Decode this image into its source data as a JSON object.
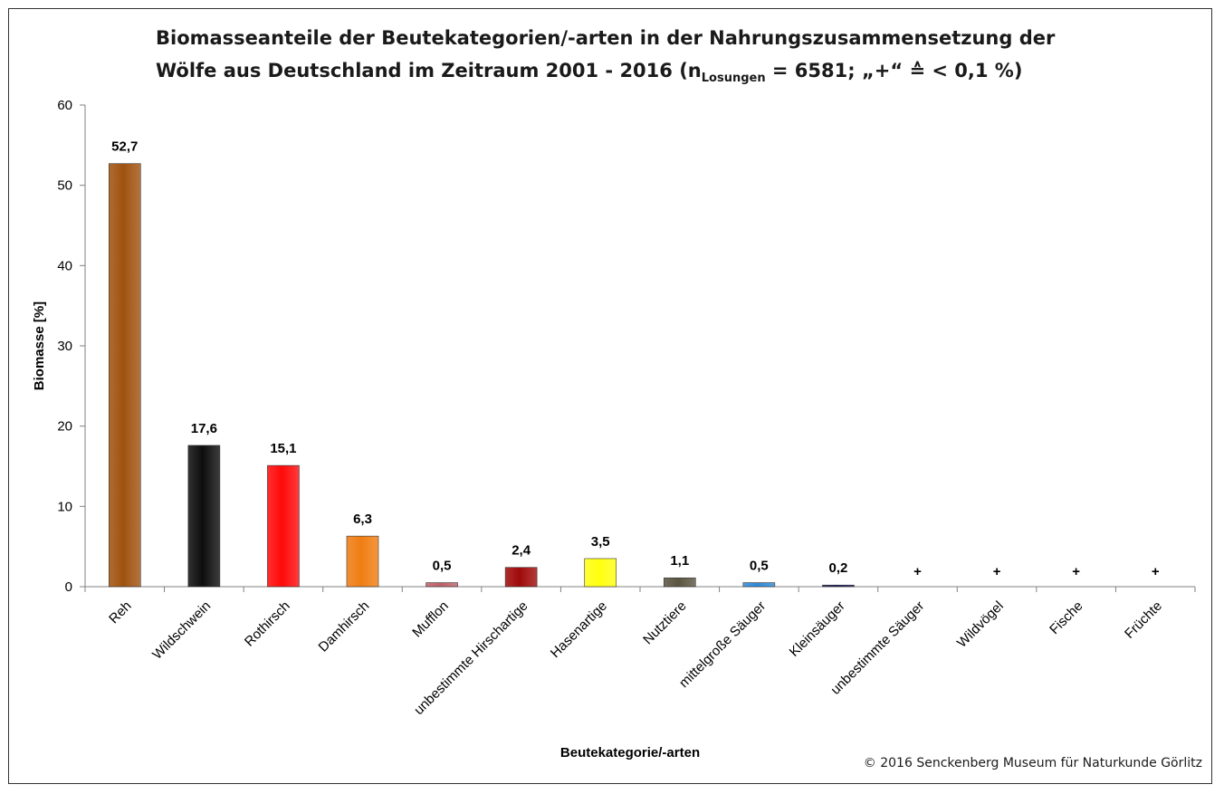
{
  "title": {
    "line1": "Biomasseanteile der Beutekategorien/-arten in der Nahrungszusammensetzung der",
    "line2_pre": "Wölfe aus Deutschland im Zeitraum 2001 - 2016 (n",
    "line2_sub": "Losungen",
    "line2_post": " = 6581; „+“ ≙ < 0,1 %)"
  },
  "copyright": "© 2016 Senckenberg Museum für Naturkunde Görlitz",
  "chart_data": {
    "type": "bar",
    "title": "Biomasseanteile der Beutekategorien/-arten in der Nahrungszusammensetzung der Wölfe aus Deutschland im Zeitraum 2001 - 2016 (nLosungen = 6581; „+“ ≙ < 0,1 %)",
    "xlabel": "Beutekategorie/-arten",
    "ylabel": "Biomasse [%]",
    "ylim": [
      0,
      60
    ],
    "yticks": [
      0,
      10,
      20,
      30,
      40,
      50,
      60
    ],
    "grid": false,
    "categories": [
      "Reh",
      "Wildschwein",
      "Rothirsch",
      "Damhirsch",
      "Mufflon",
      "unbestimmte Hirschartige",
      "Hasenartige",
      "Nutztiere",
      "mittelgroße Säuger",
      "Kleinsäuger",
      "unbestimmte Säuger",
      "Wildvögel",
      "Fische",
      "Früchte"
    ],
    "values": [
      52.7,
      17.6,
      15.1,
      6.3,
      0.5,
      2.4,
      3.5,
      1.1,
      0.5,
      0.2,
      null,
      null,
      null,
      null
    ],
    "data_labels": [
      "52,7",
      "17,6",
      "15,1",
      "6,3",
      "0,5",
      "2,4",
      "3,5",
      "1,1",
      "0,5",
      "0,2",
      "+",
      "+",
      "+",
      "+"
    ],
    "colors": [
      "#a0520f",
      "#0d0d0d",
      "#ff0a0a",
      "#f07d12",
      "#c0606a",
      "#a00a0a",
      "#ffff10",
      "#5a5540",
      "#2f8ad8",
      "#1a1a60",
      "#000000",
      "#000000",
      "#000000",
      "#000000"
    ]
  }
}
